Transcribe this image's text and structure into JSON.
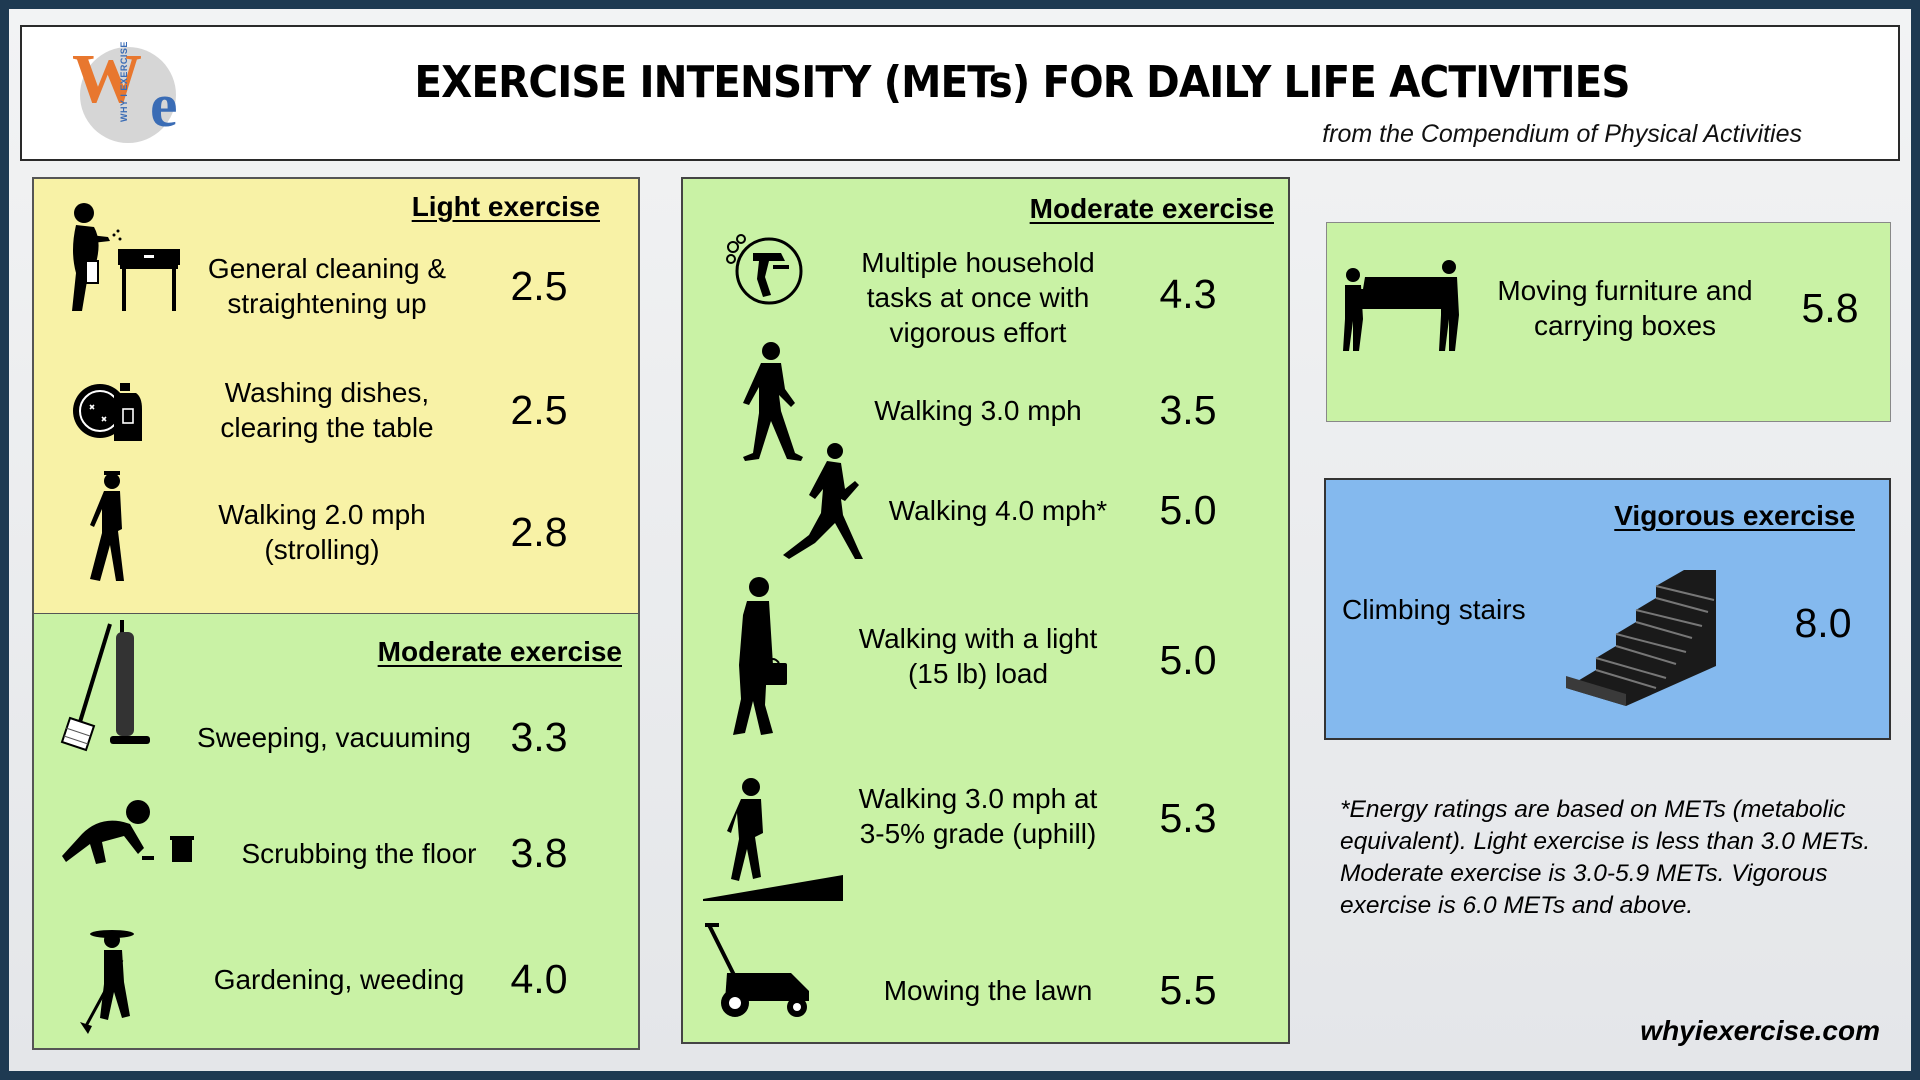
{
  "header": {
    "title": "EXERCISE INTENSITY (METs) FOR DAILY LIFE ACTIVITIES",
    "subtitle": "from the Compendium of Physical Activities",
    "logo": {
      "letter_w": "W",
      "letter_e": "e",
      "small_text": "WHY I EXERCISE",
      "colors": {
        "w": "#e8772e",
        "e": "#3a6cb5"
      }
    }
  },
  "light_panel": {
    "heading": "Light exercise",
    "color": "#f8f2a6",
    "items": [
      {
        "activity": "General cleaning & straightening up",
        "mets": "2.5",
        "icon": "cleaning-person-icon"
      },
      {
        "activity": "Washing dishes, clearing the table",
        "mets": "2.5",
        "icon": "dish-soap-icon"
      },
      {
        "activity": "Walking 2.0 mph (strolling)",
        "mets": "2.8",
        "icon": "strolling-person-icon"
      }
    ]
  },
  "moderate_left_panel": {
    "heading": "Moderate exercise",
    "color": "#c9f2a5",
    "items": [
      {
        "activity": "Sweeping, vacuuming",
        "mets": "3.3",
        "icon": "broom-vacuum-icon"
      },
      {
        "activity": "Scrubbing the floor",
        "mets": "3.8",
        "icon": "scrubbing-person-icon"
      },
      {
        "activity": "Gardening, weeding",
        "mets": "4.0",
        "icon": "gardener-icon"
      }
    ]
  },
  "moderate_center_panel": {
    "heading": "Moderate exercise",
    "items": [
      {
        "activity": "Multiple household tasks at once with vigorous effort",
        "mets": "4.3",
        "icon": "household-tasks-icon"
      },
      {
        "activity": "Walking 3.0 mph",
        "mets": "3.5",
        "icon": "walking-person-icon"
      },
      {
        "activity": "Walking 4.0 mph*",
        "mets": "5.0",
        "icon": "brisk-walker-icon"
      },
      {
        "activity": "Walking with a light (15 lb) load",
        "mets": "5.0",
        "icon": "walker-with-bag-icon"
      },
      {
        "activity": "Walking 3.0 mph at 3-5% grade (uphill)",
        "mets": "5.3",
        "icon": "uphill-walker-icon"
      },
      {
        "activity": "Mowing the lawn",
        "mets": "5.5",
        "icon": "lawn-mower-icon"
      }
    ]
  },
  "furniture_panel": {
    "activity": "Moving furniture and carrying boxes",
    "mets": "5.8",
    "icon": "movers-couch-icon"
  },
  "vigorous_panel": {
    "heading": "Vigorous exercise",
    "color": "#84b9ee",
    "activity": "Climbing stairs",
    "mets": "8.0",
    "icon": "stairs-icon"
  },
  "footnote": "*Energy ratings are based on METs (metabolic equivalent). Light exercise is less than 3.0 METs.  Moderate exercise is 3.0-5.9 METs. Vigorous exercise is 6.0 METs and above.",
  "website": "whyiexercise.com"
}
